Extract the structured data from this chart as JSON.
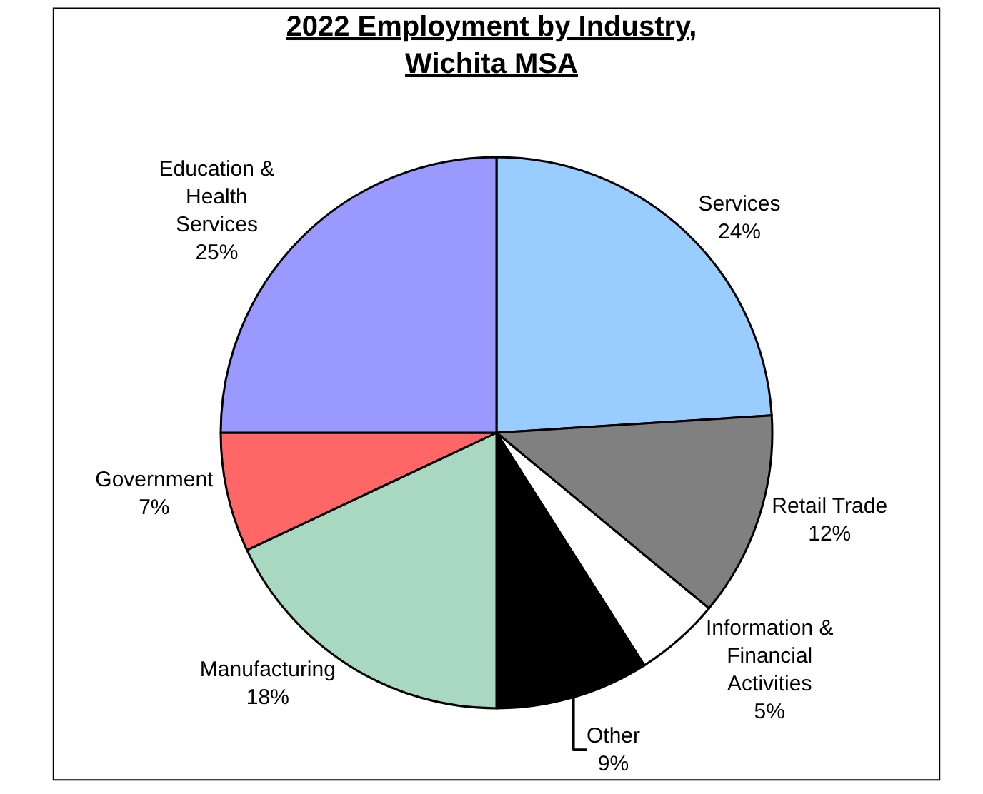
{
  "chart_data": {
    "type": "pie",
    "title": "2022 Employment by Industry, Wichita MSA",
    "categories": [
      "Services",
      "Retail Trade",
      "Information & Financial Activities",
      "Other",
      "Manufacturing",
      "Government",
      "Education & Health Services"
    ],
    "values": [
      24,
      12,
      5,
      9,
      18,
      7,
      25
    ],
    "value_labels": [
      "24%",
      "12%",
      "5%",
      "9%",
      "18%",
      "7%",
      "25%"
    ],
    "colors": [
      "#99ccff",
      "#808080",
      "#ffffff",
      "#000000",
      "#a8d8c0",
      "#ff6666",
      "#9999ff"
    ],
    "legend": false
  }
}
